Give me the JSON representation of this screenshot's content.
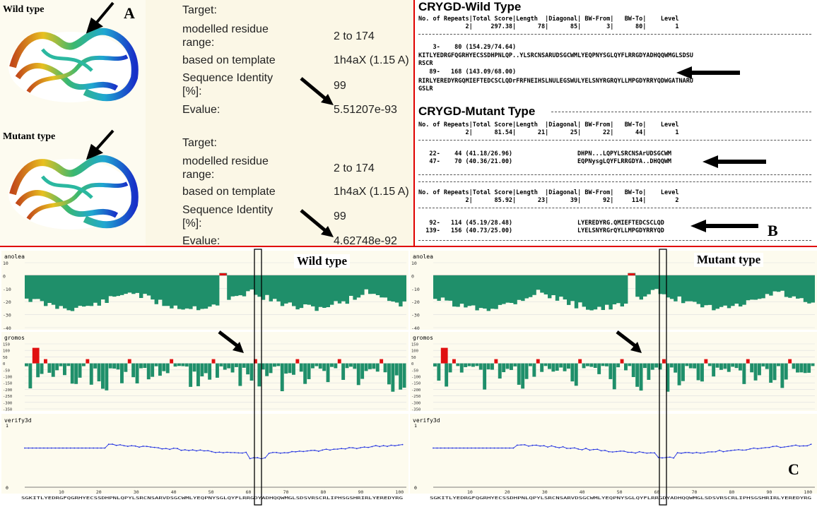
{
  "panel_a": {
    "letter": "A",
    "wild_label": "Wild type",
    "mutant_label": "Mutant type",
    "wild_info": [
      {
        "label": "Target:",
        "value": ""
      },
      {
        "label": "modelled residue\nrange:",
        "value": "2 to 174"
      },
      {
        "label": "based on template",
        "value": "1h4aX (1.15 A)"
      },
      {
        "label": "Sequence Identity\n[%]:",
        "value": "99"
      },
      {
        "label": "Evalue:",
        "value": "5.51207e-93"
      }
    ],
    "mutant_info": [
      {
        "label": "Target:",
        "value": ""
      },
      {
        "label": "modelled residue\nrange:",
        "value": "2 to 174"
      },
      {
        "label": "based on template",
        "value": "1h4aX (1.15 A)"
      },
      {
        "label": "Sequence Identity\n[%]:",
        "value": "99"
      },
      {
        "label": "Evalue:",
        "value": "4.62748e-92"
      }
    ]
  },
  "panel_b": {
    "letter": "B",
    "wild_title": "CRYGD-Wild Type",
    "mutant_title": "CRYGD-Mutant Type",
    "header": "No. of Repeats|Total Score|Length  |Diagonal| BW-From|   BW-To|    Level",
    "wild_summary": "             2|     297.38|      78|      85|       3|      80|        1",
    "wild_rep1": "    3-    80 (154.29/74.64)",
    "wild_seq1": "KITLYEDRGFQGRHYECSSDHPNLQP..YLSRCNSARUDSGCWMLYEQPNYSGLQYFLRRGDYADHQQWMGLSDSU",
    "wild_seq1b": "RSCR",
    "wild_rep2": "   89-   168 (143.09/68.00)",
    "wild_seq2": "RIRLYEREDYRGQMIEFTEDCSCLQDrFRFNEIHSLNULEGSWULYELSNYRGRQYLLMPGDYRRYQDWGATNARU",
    "wild_seq2b": "GSLR",
    "mut_summary1": "             2|      81.54|      21|      25|      22|      44|        1",
    "mut_rep1a": "   22-    44 (41.18/26.96)",
    "mut_seq1a": "DHPN...LQPYLSRCNSArUDSGCWM",
    "mut_rep1b": "   47-    70 (40.36/21.00)",
    "mut_seq1b": "EQPNysgLQYFLRRGDYA..DHQQWM",
    "mut_summary2": "             2|      85.92|      23|      39|      92|     114|        2",
    "mut_rep2a": "   92-   114 (45.19/28.48)",
    "mut_seq2a": "LYEREDYRG.QMIEFTEDCSCLQD",
    "mut_rep2b": "  139-   156 (40.73/25.00)",
    "mut_seq2b": "LYELSNYRGrQYLLMPGDYRRYQD"
  },
  "panel_c": {
    "letter": "C",
    "wild_label": "Wild type",
    "mutant_label": "Mutant type",
    "anolea_title": "anolea",
    "gromos_title": "gromos",
    "verify_title": "verify3d",
    "anolea_ticks": [
      "10",
      "0",
      "-10",
      "-20",
      "-30",
      "-40"
    ],
    "gromos_ticks": [
      "150",
      "100",
      "50",
      "0",
      "-50",
      "-100",
      "-150",
      "-200",
      "-250",
      "-300",
      "-350"
    ],
    "verify_ticks": [
      "1",
      "0"
    ],
    "x_ticks": [
      "10",
      "20",
      "30",
      "40",
      "50",
      "60",
      "70",
      "80",
      "90",
      "100"
    ],
    "sequence": "SGKITLYEDRGFQGRHYECSSDHPNLQPYLSRCNSARVDSGCWMLYEQPNYSGLQYFLRRGDYADHQQWMGLSDSVRSCRLIPHSGSHRIRLYEREDYRG"
  },
  "colors": {
    "divider": "#e00000",
    "anolea_bar": "#1f8f6a",
    "anolea_pos": "#e01010",
    "verify_line": "#2030e0",
    "plot_bg": "#fdfbee"
  }
}
